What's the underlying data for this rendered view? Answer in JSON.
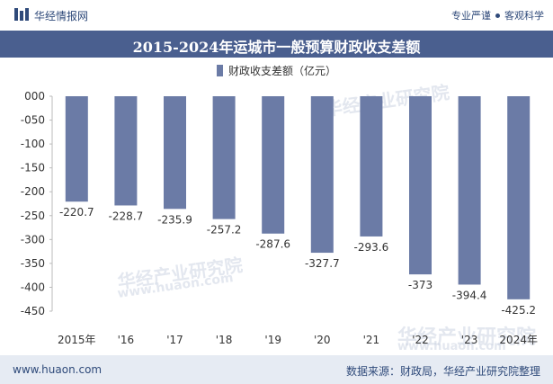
{
  "header": {
    "brand": "华经情报网",
    "tagline_left": "专业严谨",
    "tagline_right": "客观科学"
  },
  "title": "2015-2024年运城市一般预算财政收支差额",
  "watermark": {
    "text": "华经产业研究院",
    "url": "www.huaon.com"
  },
  "footer": {
    "url": "www.huaon.com",
    "source": "数据来源：财政局，华经产业研究院整理"
  },
  "colors": {
    "bar": "#6b7ba6",
    "title_bg": "#4a5f8f",
    "footer_bg": "#e6ebf3",
    "accent": "#2f4a7a"
  },
  "chart_data": {
    "type": "bar",
    "title": "2015-2024年运城市一般预算财政收支差额",
    "categories": [
      "2015年",
      "'16",
      "'17",
      "'18",
      "'19",
      "'20",
      "'21",
      "'22",
      "'23",
      "2024年"
    ],
    "series": [
      {
        "name": "财政收支差额（亿元）",
        "values": [
          -220.7,
          -228.7,
          -235.9,
          -257.2,
          -287.6,
          -327.7,
          -293.6,
          -373,
          -394.4,
          -425.2
        ]
      }
    ],
    "data_labels": [
      "-220.7",
      "-228.7",
      "-235.9",
      "-257.2",
      "-287.6",
      "-327.7",
      "-293.6",
      "-373",
      "-394.4",
      "-425.2"
    ],
    "yticks": [
      0,
      -50,
      -100,
      -150,
      -200,
      -250,
      -300,
      -350,
      -400,
      -450
    ],
    "ytick_labels": [
      "000",
      "-050",
      "-100",
      "-150",
      "-200",
      "-250",
      "-300",
      "-350",
      "-400",
      "-450"
    ],
    "ylim": [
      -450,
      0
    ],
    "xlabel": "",
    "ylabel": "",
    "legend_position": "top-center",
    "grid": false
  }
}
